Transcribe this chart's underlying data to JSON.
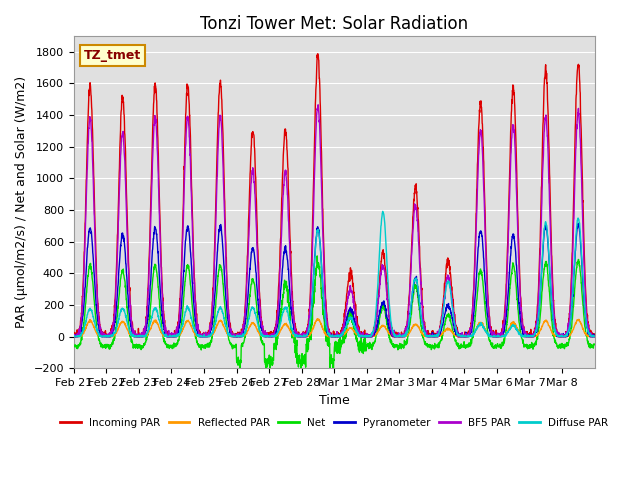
{
  "title": "Tonzi Tower Met: Solar Radiation",
  "ylabel": "PAR (μmol/m2/s) / Net and Solar (W/m2)",
  "xlabel": "Time",
  "ylim": [
    -200,
    1900
  ],
  "yticks": [
    -200,
    0,
    200,
    400,
    600,
    800,
    1000,
    1200,
    1400,
    1600,
    1800
  ],
  "background_color": "#e0e0e0",
  "label_box_text": "TZ_tmet",
  "label_box_color": "#ffffcc",
  "label_box_edge": "#cc8800",
  "series_colors": {
    "incoming_par": "#dd0000",
    "reflected_par": "#ff9900",
    "net": "#00dd00",
    "pyranometer": "#0000cc",
    "bf5_par": "#aa00cc",
    "diffuse_par": "#00cccc"
  },
  "legend_labels": [
    "Incoming PAR",
    "Reflected PAR",
    "Net",
    "Pyranometer",
    "BF5 PAR",
    "Diffuse PAR"
  ],
  "x_tick_labels": [
    "Feb 21",
    "Feb 22",
    "Feb 23",
    "Feb 24",
    "Feb 25",
    "Feb 26",
    "Feb 27",
    "Feb 28",
    "Mar 1",
    "Mar 2",
    "Mar 3",
    "Mar 4",
    "Mar 5",
    "Mar 6",
    "Mar 7",
    "Mar 8"
  ],
  "n_days": 16,
  "points_per_day": 144,
  "day_peaks_incoming": [
    1580,
    1510,
    1590,
    1590,
    1610,
    1300,
    1310,
    1770,
    410,
    530,
    940,
    480,
    1490,
    1570,
    1690,
    1730
  ],
  "day_peaks_reflected": [
    100,
    95,
    100,
    100,
    100,
    85,
    80,
    110,
    55,
    70,
    80,
    50,
    90,
    90,
    100,
    105
  ],
  "day_peaks_net": [
    510,
    480,
    510,
    510,
    510,
    420,
    400,
    530,
    200,
    250,
    380,
    200,
    480,
    510,
    530,
    540
  ],
  "day_peaks_pyrano": [
    690,
    650,
    690,
    700,
    700,
    560,
    560,
    690,
    175,
    215,
    370,
    195,
    670,
    640,
    700,
    710
  ],
  "day_peaks_bf5": [
    1380,
    1280,
    1380,
    1390,
    1390,
    1050,
    1040,
    1460,
    300,
    450,
    830,
    380,
    1300,
    1340,
    1390,
    1420
  ],
  "day_peaks_diffuse": [
    175,
    180,
    180,
    185,
    185,
    185,
    185,
    680,
    120,
    790,
    370,
    350,
    80,
    70,
    720,
    750
  ],
  "net_night": -60,
  "net_night_cloudy": -160,
  "sigma_day": 0.12,
  "title_fontsize": 12,
  "axis_fontsize": 9,
  "tick_fontsize": 8
}
